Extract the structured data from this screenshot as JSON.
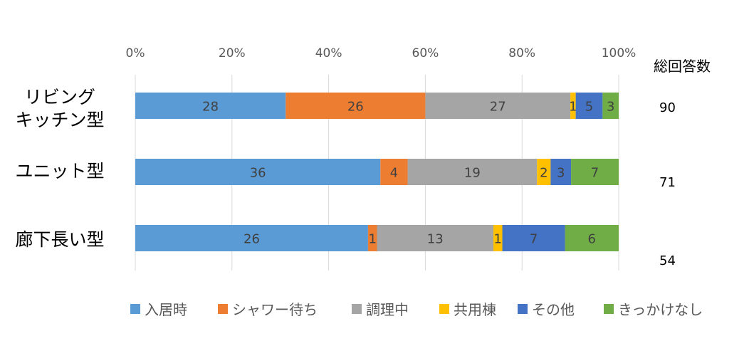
{
  "chart_data": {
    "type": "bar",
    "orientation": "horizontal",
    "stacked": "percent",
    "categories": [
      [
        "リビング",
        "キッチン型"
      ],
      [
        "ユニット型"
      ],
      [
        "廊下長い型"
      ]
    ],
    "series": [
      {
        "name": "入居時",
        "color": "#5B9BD5",
        "values": [
          28,
          36,
          26
        ]
      },
      {
        "name": "シャワー待ち",
        "color": "#ED7D31",
        "values": [
          26,
          4,
          1
        ]
      },
      {
        "name": "調理中",
        "color": "#A5A5A5",
        "values": [
          27,
          19,
          13
        ]
      },
      {
        "name": "共用棟",
        "color": "#FFC000",
        "values": [
          1,
          2,
          1
        ]
      },
      {
        "name": "その他",
        "color": "#4472C4",
        "values": [
          5,
          3,
          7
        ]
      },
      {
        "name": "きっかけなし",
        "color": "#70AD47",
        "values": [
          3,
          7,
          6
        ]
      }
    ],
    "xaxis": {
      "ticks": [
        "0%",
        "20%",
        "40%",
        "60%",
        "80%",
        "100%"
      ],
      "position": "top",
      "range": [
        0,
        1
      ]
    },
    "totals_header": "総回答数",
    "totals": [
      90,
      71,
      54
    ],
    "legend_position": "bottom",
    "grid": true
  }
}
